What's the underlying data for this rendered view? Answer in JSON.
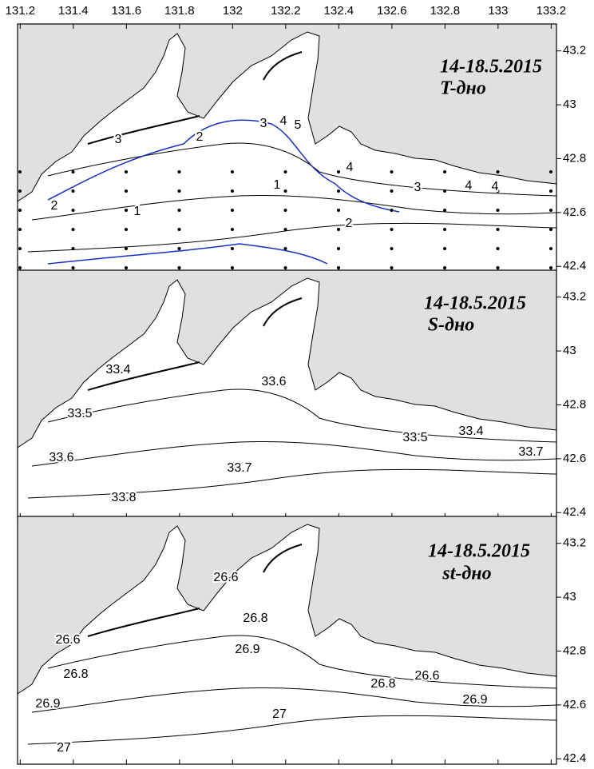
{
  "map": {
    "xlim": [
      131.19,
      133.22
    ],
    "ylim": [
      42.38,
      43.3
    ],
    "xticks": [
      131.2,
      131.4,
      131.6,
      131.8,
      132,
      132.2,
      132.4,
      132.6,
      132.8,
      133,
      133.2
    ],
    "yticks": [
      43.2,
      43,
      42.8,
      42.6,
      42.4
    ],
    "panels": [
      {
        "title": "14-18.5.2015",
        "subtitle": "T-дно",
        "contour_labels": [
          3,
          2,
          1,
          2,
          1,
          2,
          3,
          4,
          4,
          4,
          3,
          5,
          4
        ]
      },
      {
        "title": "14-18.5.2015",
        "subtitle": "S-дно",
        "contour_labels": [
          33.4,
          33.5,
          33.6,
          33.6,
          33.5,
          33.4,
          33.7,
          33.7,
          33.8
        ]
      },
      {
        "title": "14-18.5.2015",
        "subtitle": "st-дно",
        "contour_labels": [
          26.6,
          26.8,
          26.9,
          26.6,
          26.8,
          26.9,
          27,
          27,
          26.8,
          26.6,
          26.9
        ]
      }
    ]
  }
}
